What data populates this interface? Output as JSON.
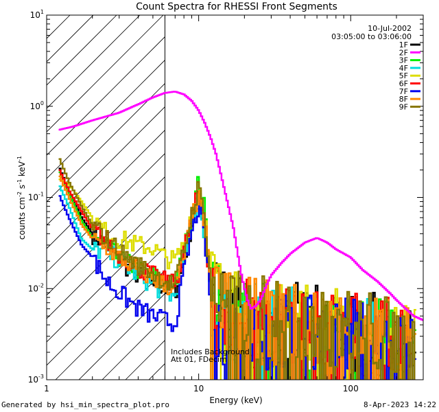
{
  "chart_data": {
    "type": "line",
    "title": "Count Spectra for RHESSI Front Segments",
    "xlabel": "Energy (keV)",
    "ylabel": "counts cm^-2 s^-1 keV^-1",
    "ylabel_parts": {
      "base": "counts cm",
      "exp1": "-2",
      "mid": " s",
      "exp2": "-1",
      "mid2": " keV",
      "exp3": "-1"
    },
    "xscale": "log",
    "yscale": "log",
    "xlim": [
      1,
      300
    ],
    "ylim": [
      0.001,
      10
    ],
    "x_ticks": [
      {
        "v": 1,
        "label": "1"
      },
      {
        "v": 10,
        "label": "10"
      },
      {
        "v": 100,
        "label": "100"
      }
    ],
    "y_ticks": [
      {
        "v": 10,
        "base": "10",
        "exp": "1"
      },
      {
        "v": 1,
        "base": "10",
        "exp": "0"
      },
      {
        "v": 0.1,
        "base": "10",
        "exp": "-1"
      },
      {
        "v": 0.01,
        "base": "10",
        "exp": "-2"
      },
      {
        "v": 0.001,
        "base": "10",
        "exp": "-3"
      }
    ],
    "hatched_region": {
      "x_max": 6
    },
    "date": "10-Jul-2002",
    "time_range": "03:05:00 to 03:06:00",
    "annotations": [
      "Includes Background",
      "Att 01, FDecim"
    ],
    "legend_position": "top-right",
    "series": [
      {
        "name": "1F",
        "color": "#000000",
        "lo": [
          [
            1.2,
            0.22
          ],
          [
            1.4,
            0.12
          ],
          [
            1.7,
            0.06
          ],
          [
            2,
            0.04
          ],
          [
            2.5,
            0.03
          ],
          [
            3,
            0.02
          ],
          [
            4,
            0.014
          ],
          [
            5,
            0.012
          ],
          [
            6,
            0.01
          ],
          [
            7,
            0.009
          ],
          [
            8,
            0.02
          ],
          [
            9,
            0.05
          ],
          [
            10,
            0.1
          ],
          [
            11,
            0.05
          ],
          [
            12,
            0.01
          ],
          [
            14,
            0.006
          ],
          [
            20,
            0.004
          ],
          [
            40,
            0.004
          ],
          [
            80,
            0.0035
          ],
          [
            150,
            0.003
          ],
          [
            250,
            0.002
          ]
        ]
      },
      {
        "name": "2F",
        "color": "#ff00ff",
        "lo": [
          [
            1.2,
            0.55
          ],
          [
            1.5,
            0.6
          ],
          [
            2,
            0.7
          ],
          [
            3,
            0.85
          ],
          [
            4,
            1.05
          ],
          [
            5,
            1.25
          ],
          [
            6,
            1.4
          ],
          [
            7,
            1.45
          ],
          [
            8,
            1.35
          ],
          [
            9,
            1.15
          ],
          [
            10,
            0.9
          ],
          [
            11,
            0.65
          ],
          [
            12,
            0.45
          ],
          [
            13,
            0.3
          ],
          [
            14,
            0.18
          ],
          [
            15,
            0.11
          ],
          [
            16,
            0.07
          ],
          [
            17,
            0.045
          ],
          [
            18,
            0.025
          ],
          [
            19,
            0.015
          ],
          [
            20,
            0.01
          ],
          [
            21,
            0.0075
          ],
          [
            22,
            0.006
          ],
          [
            24,
            0.0065
          ],
          [
            26,
            0.008
          ],
          [
            28,
            0.011
          ],
          [
            30,
            0.014
          ],
          [
            35,
            0.019
          ],
          [
            40,
            0.024
          ],
          [
            50,
            0.032
          ],
          [
            60,
            0.036
          ],
          [
            70,
            0.032
          ],
          [
            80,
            0.027
          ],
          [
            100,
            0.022
          ],
          [
            120,
            0.016
          ],
          [
            150,
            0.012
          ],
          [
            180,
            0.009
          ],
          [
            200,
            0.0075
          ],
          [
            230,
            0.006
          ],
          [
            260,
            0.005
          ],
          [
            300,
            0.0045
          ]
        ]
      },
      {
        "name": "3F",
        "color": "#00ee00",
        "lo": [
          [
            1.2,
            0.2
          ],
          [
            1.4,
            0.11
          ],
          [
            1.7,
            0.055
          ],
          [
            2,
            0.036
          ],
          [
            2.5,
            0.028
          ],
          [
            3,
            0.022
          ],
          [
            4,
            0.016
          ],
          [
            5,
            0.014
          ],
          [
            6,
            0.012
          ],
          [
            7,
            0.011
          ],
          [
            8,
            0.025
          ],
          [
            9,
            0.06
          ],
          [
            10,
            0.15
          ],
          [
            11,
            0.07
          ],
          [
            12,
            0.012
          ],
          [
            14,
            0.006
          ],
          [
            20,
            0.0045
          ],
          [
            40,
            0.004
          ],
          [
            80,
            0.0035
          ],
          [
            150,
            0.003
          ],
          [
            250,
            0.002
          ]
        ]
      },
      {
        "name": "4F",
        "color": "#00dddd",
        "lo": [
          [
            1.2,
            0.14
          ],
          [
            1.4,
            0.08
          ],
          [
            1.7,
            0.035
          ],
          [
            2,
            0.027
          ],
          [
            2.5,
            0.025
          ],
          [
            3,
            0.02
          ],
          [
            4,
            0.014
          ],
          [
            5,
            0.011
          ],
          [
            6,
            0.009
          ],
          [
            7,
            0.008
          ],
          [
            8,
            0.02
          ],
          [
            9,
            0.05
          ],
          [
            10,
            0.09
          ],
          [
            11,
            0.04
          ],
          [
            12,
            0.008
          ],
          [
            14,
            0.005
          ],
          [
            20,
            0.004
          ],
          [
            40,
            0.0035
          ],
          [
            80,
            0.003
          ],
          [
            150,
            0.0028
          ],
          [
            250,
            0.002
          ]
        ]
      },
      {
        "name": "5F",
        "color": "#dddd00",
        "lo": [
          [
            1.2,
            0.16
          ],
          [
            1.4,
            0.14
          ],
          [
            1.7,
            0.09
          ],
          [
            2,
            0.06
          ],
          [
            2.5,
            0.04
          ],
          [
            3,
            0.035
          ],
          [
            4,
            0.03
          ],
          [
            5,
            0.028
          ],
          [
            6,
            0.022
          ],
          [
            7,
            0.02
          ],
          [
            8,
            0.03
          ],
          [
            9,
            0.07
          ],
          [
            10,
            0.12
          ],
          [
            11,
            0.07
          ],
          [
            12,
            0.015
          ],
          [
            14,
            0.007
          ],
          [
            20,
            0.005
          ],
          [
            40,
            0.0045
          ],
          [
            80,
            0.004
          ],
          [
            150,
            0.0032
          ],
          [
            250,
            0.0022
          ]
        ]
      },
      {
        "name": "6F",
        "color": "#ff0000",
        "lo": [
          [
            1.2,
            0.21
          ],
          [
            1.4,
            0.12
          ],
          [
            1.7,
            0.07
          ],
          [
            2,
            0.045
          ],
          [
            2.5,
            0.033
          ],
          [
            3,
            0.024
          ],
          [
            4,
            0.017
          ],
          [
            5,
            0.014
          ],
          [
            6,
            0.012
          ],
          [
            7,
            0.011
          ],
          [
            8,
            0.025
          ],
          [
            9,
            0.06
          ],
          [
            10,
            0.11
          ],
          [
            11,
            0.05
          ],
          [
            12,
            0.01
          ],
          [
            14,
            0.006
          ],
          [
            20,
            0.0045
          ],
          [
            40,
            0.004
          ],
          [
            80,
            0.0035
          ],
          [
            150,
            0.003
          ],
          [
            250,
            0.002
          ]
        ]
      },
      {
        "name": "7F",
        "color": "#0000ee",
        "lo": [
          [
            1.2,
            0.11
          ],
          [
            1.4,
            0.06
          ],
          [
            1.7,
            0.03
          ],
          [
            2,
            0.022
          ],
          [
            2.5,
            0.012
          ],
          [
            3,
            0.009
          ],
          [
            4,
            0.006
          ],
          [
            5,
            0.005
          ],
          [
            6,
            0.0045
          ],
          [
            7,
            0.004
          ],
          [
            8,
            0.015
          ],
          [
            9,
            0.04
          ],
          [
            10,
            0.08
          ],
          [
            11,
            0.035
          ],
          [
            12,
            0.007
          ],
          [
            14,
            0.004
          ],
          [
            20,
            0.0035
          ],
          [
            40,
            0.003
          ],
          [
            80,
            0.0028
          ],
          [
            150,
            0.0025
          ],
          [
            250,
            0.0018
          ]
        ]
      },
      {
        "name": "8F",
        "color": "#ff8800",
        "lo": [
          [
            1.2,
            0.18
          ],
          [
            1.4,
            0.1
          ],
          [
            1.7,
            0.05
          ],
          [
            2,
            0.035
          ],
          [
            2.5,
            0.028
          ],
          [
            3,
            0.022
          ],
          [
            4,
            0.016
          ],
          [
            5,
            0.013
          ],
          [
            6,
            0.011
          ],
          [
            7,
            0.01
          ],
          [
            8,
            0.022
          ],
          [
            9,
            0.055
          ],
          [
            10,
            0.11
          ],
          [
            11,
            0.05
          ],
          [
            12,
            0.01
          ],
          [
            14,
            0.006
          ],
          [
            20,
            0.0045
          ],
          [
            40,
            0.004
          ],
          [
            80,
            0.0035
          ],
          [
            150,
            0.003
          ],
          [
            250,
            0.002
          ]
        ]
      },
      {
        "name": "9F",
        "color": "#887700",
        "lo": [
          [
            1.2,
            0.28
          ],
          [
            1.4,
            0.15
          ],
          [
            1.7,
            0.08
          ],
          [
            2,
            0.05
          ],
          [
            2.5,
            0.035
          ],
          [
            3,
            0.026
          ],
          [
            4,
            0.018
          ],
          [
            5,
            0.015
          ],
          [
            6,
            0.012
          ],
          [
            7,
            0.011
          ],
          [
            8,
            0.026
          ],
          [
            9,
            0.065
          ],
          [
            10,
            0.13
          ],
          [
            11,
            0.06
          ],
          [
            12,
            0.012
          ],
          [
            14,
            0.0065
          ],
          [
            20,
            0.005
          ],
          [
            40,
            0.0045
          ],
          [
            80,
            0.004
          ],
          [
            150,
            0.0032
          ],
          [
            250,
            0.0022
          ]
        ]
      }
    ]
  },
  "footer": {
    "generated_by": "Generated by hsi_min_spectra_plot.pro",
    "timestamp": "8-Apr-2023 14:22"
  }
}
